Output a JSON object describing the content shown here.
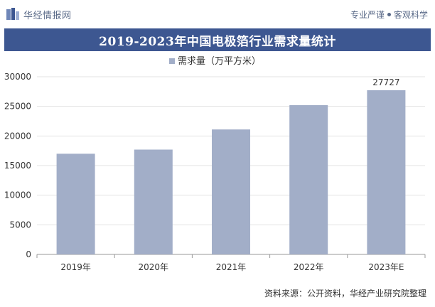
{
  "header": {
    "brand": "华经情报网",
    "tagline_left": "专业严谨",
    "tagline_right": "客观科学"
  },
  "chart_data": {
    "type": "bar",
    "title": "2019-2023年中国电极箔行业需求量统计",
    "categories": [
      "2019年",
      "2020年",
      "2021年",
      "2022年",
      "2023年E"
    ],
    "series": [
      {
        "name": "需求量（万平方米）",
        "values": [
          17000,
          17700,
          21100,
          25200,
          27727
        ]
      }
    ],
    "data_labels": [
      "",
      "",
      "",
      "",
      "27727"
    ],
    "ylim": [
      0,
      30000
    ],
    "yticks": [
      0,
      5000,
      10000,
      15000,
      20000,
      25000,
      30000
    ],
    "grid": true,
    "legend_position": "top",
    "colors": {
      "bar": "#a2aec8",
      "title_bg": "#3d5791"
    }
  },
  "footer": {
    "source": "资料来源：公开资料，华经产业研究院整理"
  }
}
